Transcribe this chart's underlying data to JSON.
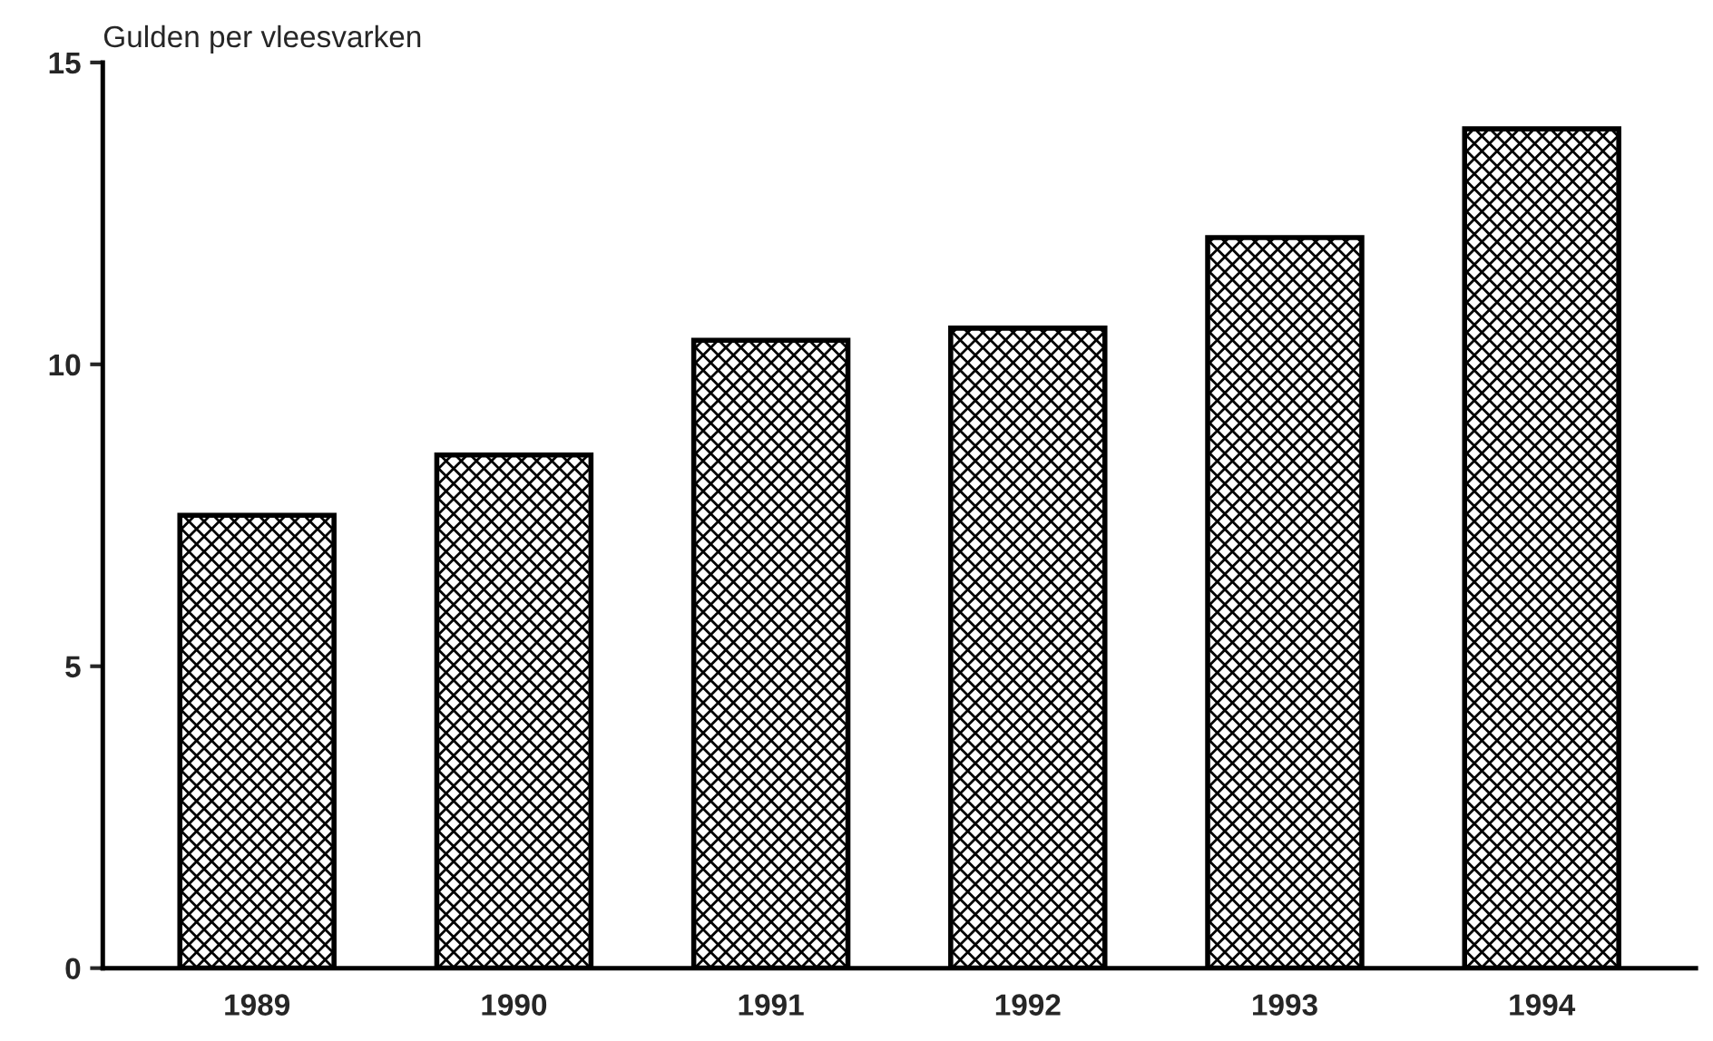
{
  "chart_data": {
    "type": "bar",
    "ylabel": "Gulden per vleesvarken",
    "categories": [
      "1989",
      "1990",
      "1991",
      "1992",
      "1993",
      "1994"
    ],
    "values": [
      7.5,
      8.5,
      10.4,
      10.6,
      12.1,
      13.9
    ],
    "color": "#000000",
    "ylim": [
      0,
      15
    ],
    "yticks": [
      0,
      5,
      10,
      15
    ],
    "grid": false,
    "legend": false
  }
}
